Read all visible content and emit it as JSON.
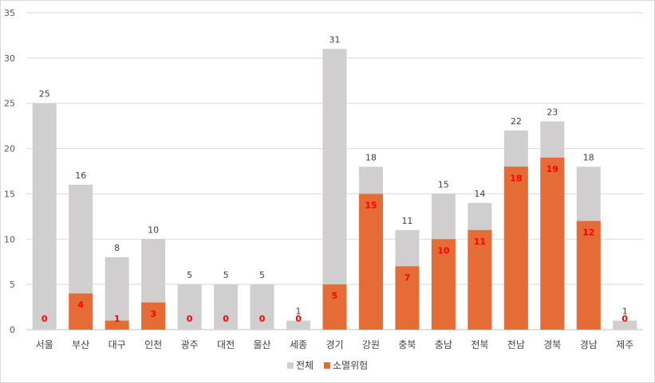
{
  "chart_data": {
    "type": "bar",
    "title": "",
    "xlabel": "",
    "ylabel": "",
    "ylim": [
      0,
      35
    ],
    "yticks": [
      0,
      5,
      10,
      15,
      20,
      25,
      30,
      35
    ],
    "grid": true,
    "legend_position": "bottom",
    "overlap": true,
    "categories": [
      "서울",
      "부산",
      "대구",
      "인천",
      "광주",
      "대전",
      "울산",
      "세종",
      "경기",
      "강원",
      "충북",
      "충남",
      "전북",
      "전남",
      "경북",
      "경남",
      "제주"
    ],
    "series": [
      {
        "name": "전체",
        "color": "#d0cece",
        "values": [
          25,
          16,
          8,
          10,
          5,
          5,
          5,
          1,
          31,
          18,
          11,
          15,
          14,
          22,
          23,
          18,
          1
        ]
      },
      {
        "name": "소멸위험",
        "color": "#e66c37",
        "values": [
          0,
          4,
          1,
          3,
          0,
          0,
          0,
          0,
          5,
          15,
          7,
          10,
          11,
          18,
          19,
          12,
          0
        ]
      }
    ]
  }
}
